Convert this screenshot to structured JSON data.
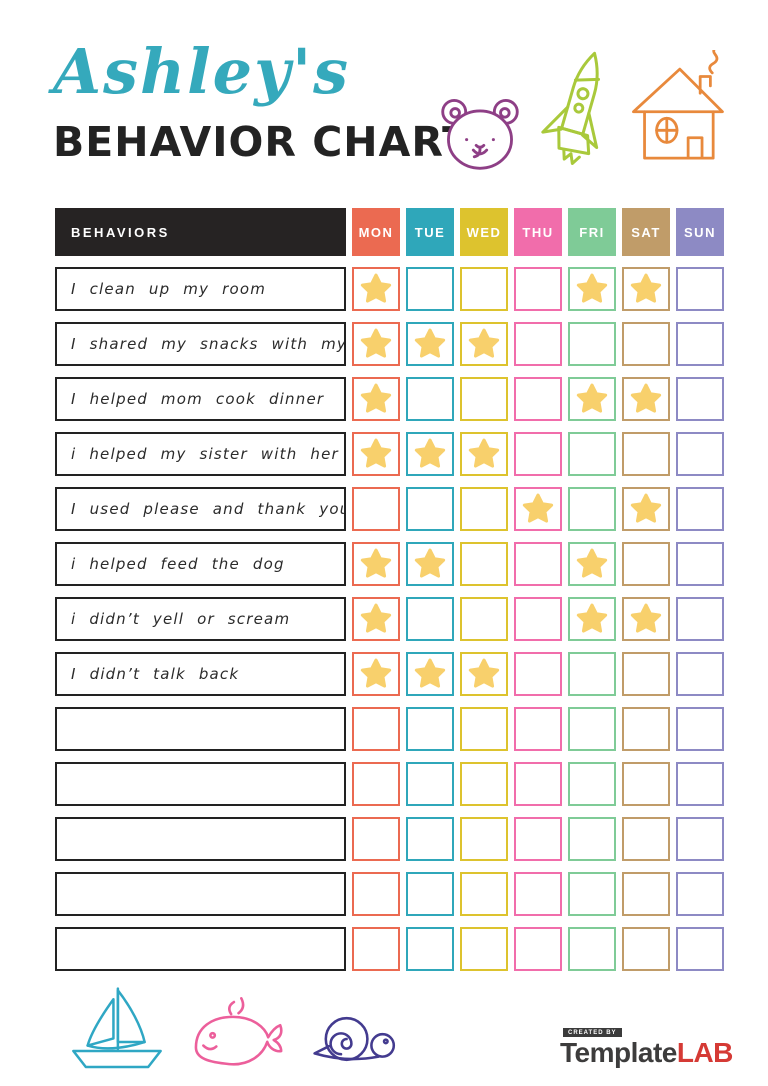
{
  "header": {
    "name_script": "Ashley's",
    "title": "BEHAVIOR CHART",
    "script_color": "#35a9bc",
    "title_color": "#232323"
  },
  "table": {
    "behaviors_header": "BEHAVIORS",
    "header_bg": "#262323",
    "star_color": "#f8d06c",
    "days": [
      {
        "label": "MON",
        "color": "#eb6a51"
      },
      {
        "label": "TUE",
        "color": "#2fa7ba"
      },
      {
        "label": "WED",
        "color": "#ddc32e"
      },
      {
        "label": "THU",
        "color": "#f16dab"
      },
      {
        "label": "FRI",
        "color": "#7fcb97"
      },
      {
        "label": "SAT",
        "color": "#c09c69"
      },
      {
        "label": "SUN",
        "color": "#8d8ac4"
      }
    ],
    "rows": [
      {
        "label": "I clean up my room",
        "stars": [
          1,
          0,
          0,
          0,
          1,
          1,
          0
        ]
      },
      {
        "label": "I shared my snacks with my sister",
        "stars": [
          1,
          1,
          1,
          0,
          0,
          0,
          0
        ]
      },
      {
        "label": "I helped mom cook dinner",
        "stars": [
          1,
          0,
          0,
          0,
          1,
          1,
          0
        ]
      },
      {
        "label": "i helped my sister with her homework",
        "stars": [
          1,
          1,
          1,
          0,
          0,
          0,
          0
        ]
      },
      {
        "label": "I used please and thank you",
        "stars": [
          0,
          0,
          0,
          1,
          0,
          1,
          0
        ]
      },
      {
        "label": "i helped feed the dog",
        "stars": [
          1,
          1,
          0,
          0,
          1,
          0,
          0
        ]
      },
      {
        "label": "i didn’t yell or scream",
        "stars": [
          1,
          0,
          0,
          0,
          1,
          1,
          0
        ]
      },
      {
        "label": "I didn’t talk back",
        "stars": [
          1,
          1,
          1,
          0,
          0,
          0,
          0
        ]
      },
      {
        "label": "",
        "stars": [
          0,
          0,
          0,
          0,
          0,
          0,
          0
        ]
      },
      {
        "label": "",
        "stars": [
          0,
          0,
          0,
          0,
          0,
          0,
          0
        ]
      },
      {
        "label": "",
        "stars": [
          0,
          0,
          0,
          0,
          0,
          0,
          0
        ]
      },
      {
        "label": "",
        "stars": [
          0,
          0,
          0,
          0,
          0,
          0,
          0
        ]
      },
      {
        "label": "",
        "stars": [
          0,
          0,
          0,
          0,
          0,
          0,
          0
        ]
      }
    ]
  },
  "doodles": {
    "top": [
      {
        "name": "bear",
        "color": "#8e3f86"
      },
      {
        "name": "rocket",
        "color": "#a9c93b"
      },
      {
        "name": "house",
        "color": "#e8893c"
      }
    ],
    "bottom": [
      {
        "name": "sailboat",
        "color": "#2fa7c4"
      },
      {
        "name": "whale",
        "color": "#ec5f9b"
      },
      {
        "name": "snail",
        "color": "#433b8f"
      }
    ]
  },
  "footer": {
    "created_by": "CREATED BY",
    "brand_name": "Template",
    "brand_suffix": "LAB",
    "brand_suffix_color": "#d53a35"
  }
}
